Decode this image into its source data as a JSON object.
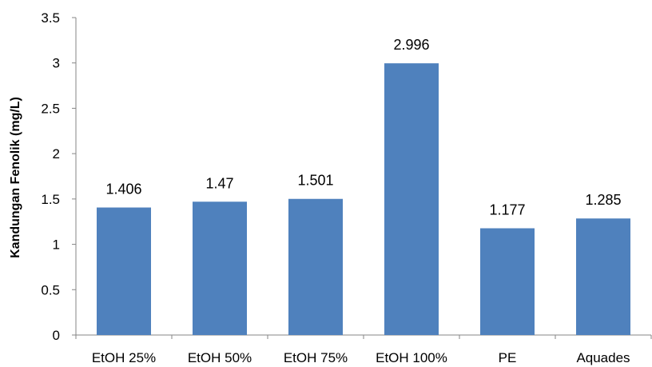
{
  "chart_data": {
    "type": "bar",
    "title": "",
    "xlabel": "",
    "ylabel": "Kandungan  Fenolik  (mg/L)",
    "categories": [
      "EtOH 25%",
      "EtOH 50%",
      "EtOH 75%",
      "EtOH 100%",
      "PE",
      "Aquades"
    ],
    "values": [
      1.406,
      1.47,
      1.501,
      2.996,
      1.177,
      1.285
    ],
    "data_labels": [
      "1.406",
      "1.47",
      "1.501",
      "2.996",
      "1.177",
      "1.285"
    ],
    "ylim": [
      0,
      3.5
    ],
    "yticks": [
      "0",
      "0.5",
      "1",
      "1.5",
      "2",
      "2.5",
      "3",
      "3.5"
    ],
    "grid": false,
    "legend": "none",
    "bar_color": "#4f81bd",
    "axis_color": "#868686"
  }
}
